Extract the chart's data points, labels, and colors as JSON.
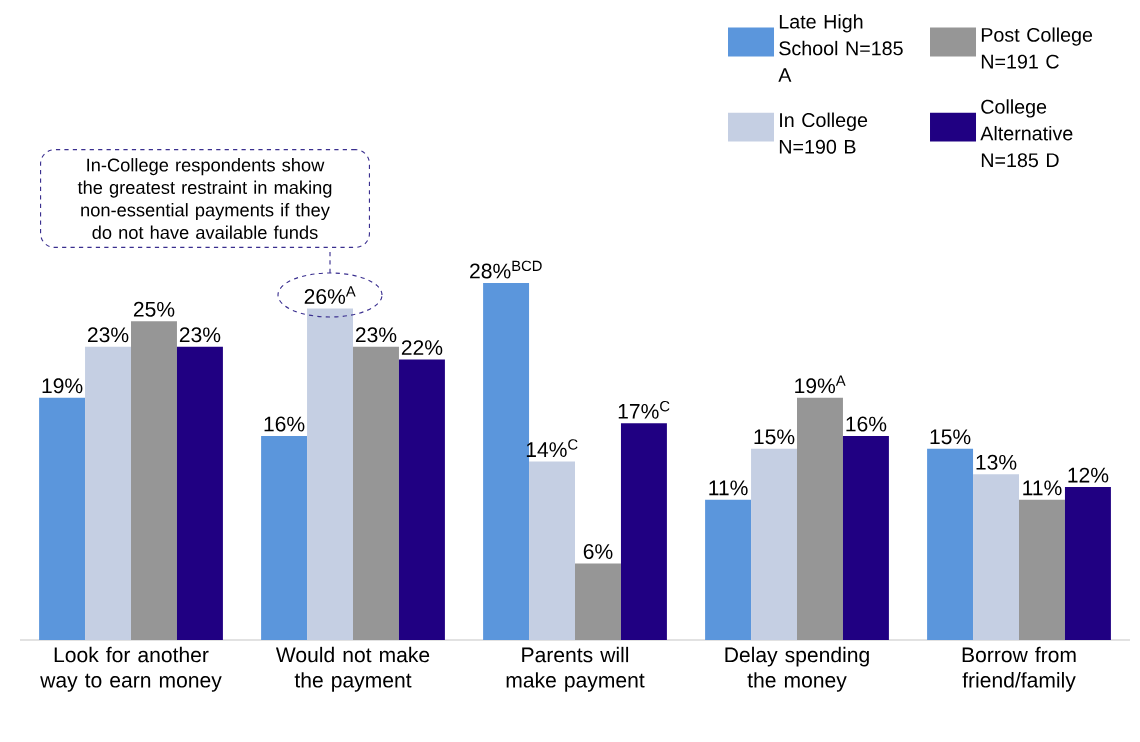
{
  "chart_data": {
    "type": "bar",
    "categories": [
      "Look for another way to earn money",
      "Would not make the payment",
      "Parents will make payment",
      "Delay spending the money",
      "Borrow from friend/family"
    ],
    "series": [
      {
        "name": "Late High School N=185 A",
        "color": "#5b96dc",
        "values": [
          19,
          16,
          28,
          11,
          15
        ],
        "value_labels": [
          "19%",
          "16%",
          "28%$^{BCD}$",
          "11%",
          "15%"
        ]
      },
      {
        "name": "In College N=190 B",
        "color": "#c5cfe3",
        "values": [
          23,
          26,
          14,
          15,
          13
        ],
        "value_labels": [
          "23%",
          "26%$^{A}$",
          "14%$^{C}$",
          "15%",
          "13%"
        ]
      },
      {
        "name": "Post College N=191 C",
        "color": "#969696",
        "values": [
          25,
          23,
          6,
          19,
          11
        ],
        "value_labels": [
          "25%",
          "23%",
          "6%",
          "19%$^{A}$",
          "11%"
        ]
      },
      {
        "name": "College Alternative N=185 D",
        "color": "#200082",
        "values": [
          23,
          22,
          17,
          16,
          12
        ],
        "value_labels": [
          "23%",
          "22%",
          "17%$^{C}$",
          "16%",
          "12%"
        ]
      }
    ],
    "annotations": [
      "In-College respondents show the greatest restraint in making non-essential payments if they do not have available funds"
    ],
    "legend": "top right"
  }
}
